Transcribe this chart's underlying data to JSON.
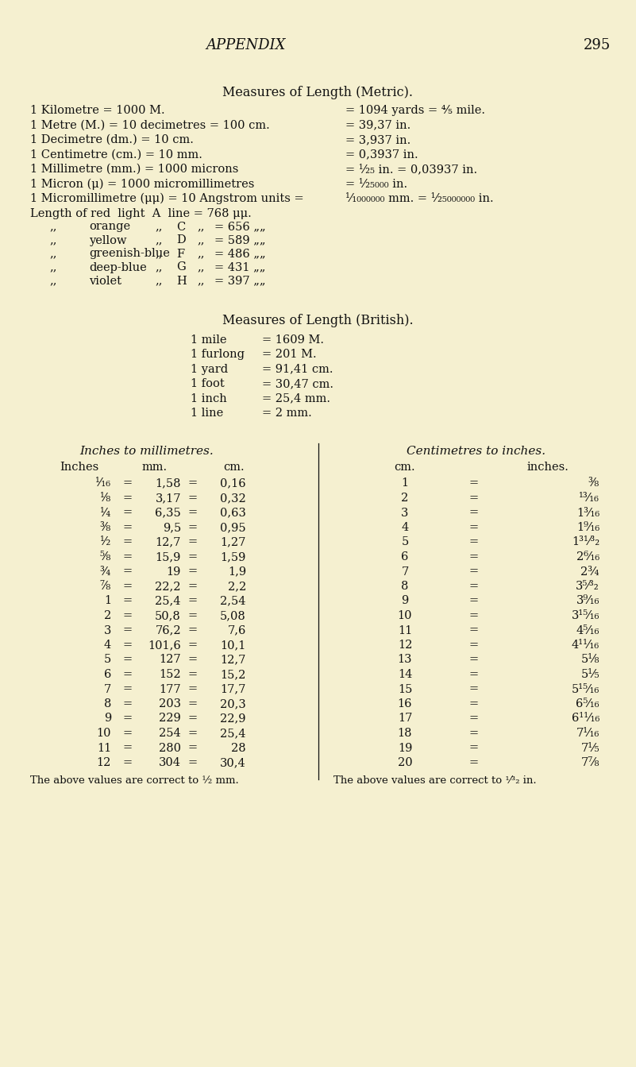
{
  "bg_color": "#F5F0D0",
  "text_color": "#111111",
  "page_title": "APPENDIX",
  "page_number": "295",
  "section1_title": "Measures of Length (Metric).",
  "metric_left": [
    "1 Kilometre = 1000 M.",
    "1 Metre (M.) = 10 decimetres = 100 cm.",
    "1 Decimetre (dm.) = 10 cm.",
    "1 Centimetre (cm.) = 10 mm.",
    "1 Millimetre (mm.) = 1000 microns",
    "1 Micron (μ) = 1000 micromillimetres",
    "1 Micromillimetre (μμ) = 10 Angstrom units ="
  ],
  "metric_right": [
    "= 1094 yards = ⅘ mile.",
    "= 39,37 in.",
    "= 3,937 in.",
    "= 0,3937 in.",
    "= ¹⁄₂₅ in. = 0,03937 in.",
    "= ¹⁄₂₅₀₀₀ in.",
    "¹⁄₁₀₀₀₀₀₀ mm. = ¹⁄₂₅₀₀₀₀₀₀ in."
  ],
  "light_line0": "Length of red  light  A  line = 768 μμ.",
  "light_lines": [
    [
      "„„",
      "orange",
      "„„",
      "C",
      "„„",
      "= 656 „„"
    ],
    [
      "„„",
      "yellow",
      "„„",
      "D",
      "„„",
      "= 589 „„"
    ],
    [
      "„„",
      "greenish-blue",
      "„„",
      "F",
      "„„",
      "= 486 „„"
    ],
    [
      "„„",
      "deep-blue",
      "„„",
      "G",
      "„„",
      "= 431 „„"
    ],
    [
      "„„",
      "violet",
      "„„",
      "H",
      "„„",
      "= 397 „„"
    ]
  ],
  "section2_title": "Measures of Length (British).",
  "british_lines": [
    [
      "1 mile",
      "= 1609 M."
    ],
    [
      "1 furlong",
      "= 201 M."
    ],
    [
      "1 yard",
      "= 91,41 cm."
    ],
    [
      "1 foot",
      "= 30,47 cm."
    ],
    [
      "1 inch",
      "= 25,4 mm."
    ],
    [
      "1 line",
      "= 2 mm."
    ]
  ],
  "table1_title": "Inches to millimetres.",
  "table1_headers": [
    "Inches",
    "mm.",
    "cm."
  ],
  "table1_col1": [
    "¹⁄₁₆",
    "¹⁄₈",
    "¹⁄₄",
    "³⁄₈",
    "¹⁄₂",
    "⁵⁄₈",
    "³⁄₄",
    "⁷⁄₈",
    "1",
    "2",
    "3",
    "4",
    "5",
    "6",
    "7",
    "8",
    "9",
    "10",
    "11",
    "12"
  ],
  "table1_col2": [
    "1,58",
    "3,17",
    "6,35",
    "9,5",
    "12,7",
    "15,9",
    "19",
    "22,2",
    "25,4",
    "50,8",
    "76,2",
    "101,6",
    "127",
    "152",
    "177",
    "203",
    "229",
    "254",
    "280",
    "304"
  ],
  "table1_col3": [
    "0,16",
    "0,32",
    "0,63",
    "0,95",
    "1,27",
    "1,59",
    "1,9",
    "2,2",
    "2,54",
    "5,08",
    "7,6",
    "10,1",
    "12,7",
    "15,2",
    "17,7",
    "20,3",
    "22,9",
    "25,4",
    "28",
    "30,4"
  ],
  "table1_note": "The above values are correct to ½ mm.",
  "table2_title": "Centimetres to inches.",
  "table2_headers": [
    "cm.",
    "inches."
  ],
  "table2_col1": [
    "1",
    "2",
    "3",
    "4",
    "5",
    "6",
    "7",
    "8",
    "9",
    "10",
    "11",
    "12",
    "13",
    "14",
    "15",
    "16",
    "17",
    "18",
    "19",
    "20"
  ],
  "table2_col2": [
    "³⁄₈",
    "¹³⁄₁₆",
    "1³⁄₁₆",
    "1⁹⁄₁₆",
    "1³¹⁄³₂",
    "2⁶⁄₁₆",
    "2³⁄₄",
    "3⁵⁄³₂",
    "3⁹⁄₁₆",
    "3¹⁵⁄₁₆",
    "4⁵⁄₁₆",
    "4¹¹⁄₁₆",
    "5¹⁄₈",
    "5¹⁄₅",
    "5¹⁵⁄₁₆",
    "6⁵⁄₁₆",
    "6¹¹⁄₁₆",
    "7¹⁄₁₆",
    "7¹⁄₅",
    "7⁷⁄₈"
  ],
  "table2_note": "The above values are correct to ¹⁄³₂ in."
}
